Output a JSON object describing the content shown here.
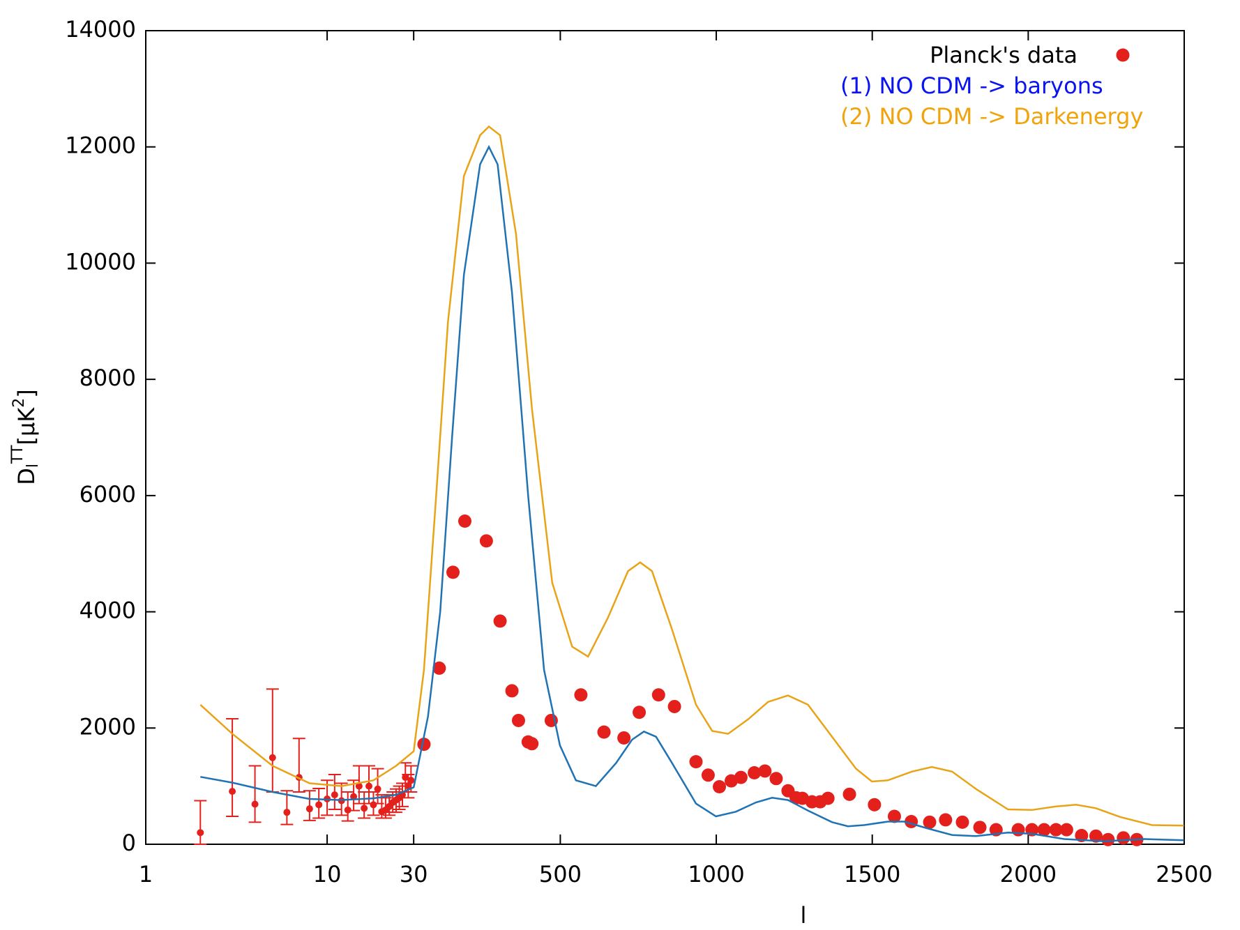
{
  "chart_data": {
    "type": "line",
    "xlabel": "l",
    "ylabel": [
      "D",
      "l",
      "TT",
      "[μK",
      "2",
      "]"
    ],
    "xscale": "log-linear",
    "xsplit": 30,
    "xlim": [
      1,
      2500
    ],
    "xticks": [
      1,
      10,
      30,
      500,
      1000,
      1500,
      2000,
      2500
    ],
    "ylim": [
      0,
      14000
    ],
    "yticks": [
      0,
      2000,
      4000,
      6000,
      8000,
      10000,
      12000,
      14000
    ],
    "legend": "upper right",
    "series": [
      {
        "name": "Planck's data",
        "type": "scatter",
        "color": "#e3201b",
        "legend_color": "#000000",
        "x": [
          2,
          3,
          4,
          5,
          6,
          7,
          8,
          9,
          10,
          11,
          12,
          13,
          14,
          15,
          16,
          17,
          18,
          19,
          20,
          21,
          22,
          23,
          24,
          25,
          26,
          27,
          28,
          29,
          63,
          112,
          156,
          194,
          263,
          307,
          345,
          366,
          397,
          409,
          471,
          566,
          640,
          704,
          753,
          815,
          866,
          935,
          974,
          1010,
          1048,
          1079,
          1122,
          1156,
          1192,
          1230,
          1256,
          1276,
          1307,
          1333,
          1358,
          1427,
          1507,
          1571,
          1625,
          1684,
          1735,
          1789,
          1845,
          1897,
          1968,
          2012,
          2051,
          2089,
          2123,
          2171,
          2217,
          2256,
          2305,
          2348
        ],
        "values": [
          200,
          910,
          690,
          1490,
          550,
          1150,
          610,
          680,
          780,
          850,
          750,
          590,
          820,
          1000,
          620,
          1000,
          680,
          950,
          560,
          590,
          650,
          720,
          760,
          800,
          850,
          1150,
          1000,
          1100,
          1720,
          3030,
          4680,
          5560,
          5220,
          3840,
          2640,
          2130,
          1760,
          1730,
          2130,
          2570,
          1930,
          1830,
          2270,
          2570,
          2370,
          1420,
          1190,
          990,
          1090,
          1150,
          1230,
          1260,
          1130,
          920,
          800,
          790,
          730,
          730,
          790,
          860,
          680,
          480,
          390,
          380,
          420,
          380,
          290,
          250,
          250,
          250,
          250,
          250,
          250,
          150,
          140,
          80,
          110,
          80
        ],
        "errors_minus": [
          200,
          430,
          310,
          590,
          210,
          250,
          200,
          230,
          280,
          250,
          250,
          190,
          240,
          300,
          170,
          300,
          180,
          250,
          110,
          140,
          150,
          170,
          210,
          200,
          200,
          250,
          200,
          200,
          null,
          null,
          null,
          null,
          null,
          null,
          null,
          null,
          null,
          null,
          null,
          null,
          null,
          null,
          null,
          null,
          null,
          null,
          null,
          null,
          null,
          null,
          null,
          null,
          null,
          null,
          null,
          null,
          null,
          null,
          null,
          null,
          null,
          null,
          null,
          null,
          null,
          null,
          null,
          null,
          null,
          null,
          null,
          null,
          null,
          null,
          null,
          null,
          null,
          null
        ],
        "errors_plus": [
          550,
          1250,
          660,
          1180,
          370,
          670,
          310,
          280,
          320,
          350,
          300,
          310,
          280,
          350,
          280,
          350,
          220,
          350,
          290,
          210,
          200,
          180,
          190,
          200,
          200,
          250,
          200,
          250,
          null,
          null,
          null,
          null,
          null,
          null,
          null,
          null,
          null,
          null,
          null,
          null,
          null,
          null,
          null,
          null,
          null,
          null,
          null,
          null,
          null,
          null,
          null,
          null,
          null,
          null,
          null,
          null,
          null,
          null,
          null,
          null,
          null,
          null,
          null,
          null,
          null,
          null,
          null,
          null,
          null,
          null,
          null,
          null,
          null,
          null,
          null,
          null,
          null,
          null
        ]
      },
      {
        "name": "(1) NO CDM -> baryons",
        "type": "line",
        "color": "#1f73b4",
        "legend_color": "#0a14f0",
        "x": [
          2,
          3,
          5,
          8,
          12,
          18,
          24,
          30,
          76,
          115,
          153,
          191,
          243,
          271,
          299,
          345,
          397,
          448,
          499,
          550,
          614,
          679,
          730,
          768,
          807,
          858,
          935,
          999,
          1063,
          1127,
          1179,
          1230,
          1294,
          1371,
          1422,
          1474,
          1550,
          1602,
          1679,
          1756,
          1833,
          1935,
          2012,
          2115,
          2243,
          2371,
          2499
        ],
        "values": [
          1160,
          1060,
          900,
          780,
          760,
          790,
          850,
          980,
          2200,
          4000,
          7000,
          9800,
          11700,
          12000,
          11700,
          9500,
          6000,
          3000,
          1700,
          1100,
          1000,
          1400,
          1800,
          1940,
          1850,
          1400,
          700,
          480,
          560,
          720,
          800,
          760,
          580,
          380,
          310,
          330,
          390,
          390,
          270,
          160,
          140,
          200,
          180,
          90,
          50,
          90,
          70
        ]
      },
      {
        "name": "(2) NO CDM -> Darkenergy",
        "type": "line",
        "color": "#e8a317",
        "legend_color": "#f0a30a",
        "x": [
          2,
          3,
          5,
          8,
          12,
          18,
          24,
          30,
          63,
          102,
          140,
          191,
          243,
          271,
          307,
          358,
          409,
          474,
          538,
          589,
          653,
          717,
          756,
          794,
          858,
          935,
          987,
          1038,
          1102,
          1166,
          1230,
          1294,
          1371,
          1448,
          1499,
          1550,
          1627,
          1691,
          1756,
          1833,
          1935,
          2012,
          2089,
          2153,
          2217,
          2294,
          2397,
          2499
        ],
        "values": [
          2400,
          1900,
          1350,
          1050,
          1000,
          1100,
          1350,
          1600,
          3000,
          6000,
          9000,
          11500,
          12200,
          12350,
          12200,
          10500,
          7500,
          4500,
          3400,
          3230,
          3900,
          4700,
          4850,
          4700,
          3700,
          2400,
          1950,
          1900,
          2150,
          2450,
          2560,
          2400,
          1850,
          1300,
          1080,
          1100,
          1250,
          1330,
          1250,
          950,
          600,
          590,
          650,
          680,
          620,
          470,
          330,
          320
        ]
      }
    ]
  }
}
